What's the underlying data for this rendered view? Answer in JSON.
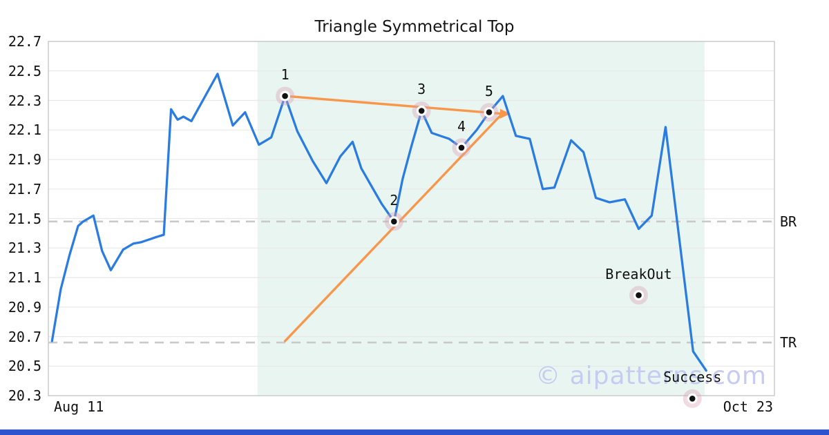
{
  "title": "Triangle Symmetrical Top",
  "watermark": "© aipatterns.com",
  "colors": {
    "price_line": "#2b7ce0",
    "trendline": "#f8964a",
    "pattern_zone": "#e9f5f1",
    "marker_halo": "rgba(219,158,180,0.38)",
    "marker_ring": "#ffffff",
    "marker_dot": "#111111",
    "grid": "#e8e8e8",
    "level_dash": "#c9c9c9",
    "spine": "#cccccc",
    "watermark": "#c6cbf2",
    "bottom_bar": "#2e53cf"
  },
  "chart_data": {
    "type": "line",
    "title": "Triangle Symmetrical Top",
    "legend": "none",
    "grid": "horizontal",
    "x_axis": {
      "start_label": "Aug 11",
      "end_label": "Oct 23"
    },
    "y_axis": {
      "min": 20.3,
      "max": 22.7,
      "tick_step": 0.2,
      "ticks": [
        22.7,
        22.5,
        22.3,
        22.1,
        21.9,
        21.7,
        21.5,
        21.3,
        21.1,
        20.9,
        20.7,
        20.5,
        20.3
      ]
    },
    "levels": [
      {
        "label": "BR",
        "value": 21.48
      },
      {
        "label": "TR",
        "value": 20.66
      }
    ],
    "pattern_zone": {
      "x_start_frac": 0.288,
      "x_end_frac": 0.904
    },
    "series": {
      "name": "price",
      "points": [
        [
          0.005,
          20.67
        ],
        [
          0.017,
          21.02
        ],
        [
          0.029,
          21.25
        ],
        [
          0.041,
          21.45
        ],
        [
          0.048,
          21.48
        ],
        [
          0.062,
          21.52
        ],
        [
          0.074,
          21.28
        ],
        [
          0.086,
          21.15
        ],
        [
          0.103,
          21.29
        ],
        [
          0.117,
          21.33
        ],
        [
          0.128,
          21.34
        ],
        [
          0.14,
          21.36
        ],
        [
          0.149,
          21.375
        ],
        [
          0.159,
          21.39
        ],
        [
          0.169,
          22.24
        ],
        [
          0.178,
          22.17
        ],
        [
          0.186,
          22.19
        ],
        [
          0.197,
          22.16
        ],
        [
          0.233,
          22.48
        ],
        [
          0.254,
          22.13
        ],
        [
          0.271,
          22.22
        ],
        [
          0.29,
          22.0
        ],
        [
          0.307,
          22.05
        ],
        [
          0.326,
          22.33
        ],
        [
          0.343,
          22.09
        ],
        [
          0.364,
          21.89
        ],
        [
          0.383,
          21.74
        ],
        [
          0.402,
          21.92
        ],
        [
          0.419,
          22.02
        ],
        [
          0.431,
          21.84
        ],
        [
          0.445,
          21.72
        ],
        [
          0.459,
          21.6
        ],
        [
          0.476,
          21.48
        ],
        [
          0.488,
          21.77
        ],
        [
          0.5,
          21.99
        ],
        [
          0.514,
          22.23
        ],
        [
          0.528,
          22.08
        ],
        [
          0.552,
          22.04
        ],
        [
          0.569,
          21.98
        ],
        [
          0.59,
          22.1
        ],
        [
          0.607,
          22.22
        ],
        [
          0.626,
          22.33
        ],
        [
          0.644,
          22.06
        ],
        [
          0.663,
          22.04
        ],
        [
          0.681,
          21.7
        ],
        [
          0.697,
          21.71
        ],
        [
          0.72,
          22.03
        ],
        [
          0.737,
          21.95
        ],
        [
          0.754,
          21.64
        ],
        [
          0.773,
          21.61
        ],
        [
          0.794,
          21.63
        ],
        [
          0.813,
          21.43
        ],
        [
          0.831,
          21.52
        ],
        [
          0.85,
          22.12
        ],
        [
          0.872,
          21.24
        ],
        [
          0.888,
          20.6
        ],
        [
          0.906,
          20.47
        ]
      ]
    },
    "trendlines": [
      {
        "name": "upper",
        "from": [
          0.326,
          22.33
        ],
        "to": [
          0.625,
          22.21
        ]
      },
      {
        "name": "lower",
        "from": [
          0.326,
          20.67
        ],
        "to": [
          0.625,
          22.21
        ]
      }
    ],
    "apex": {
      "x": 0.625,
      "value": 22.21
    },
    "annotations": [
      {
        "label": "1",
        "x": 0.326,
        "value": 22.33
      },
      {
        "label": "2",
        "x": 0.476,
        "value": 21.48
      },
      {
        "label": "3",
        "x": 0.514,
        "value": 22.23
      },
      {
        "label": "4",
        "x": 0.569,
        "value": 21.98
      },
      {
        "label": "5",
        "x": 0.607,
        "value": 22.22
      },
      {
        "label": "BreakOut",
        "x": 0.813,
        "value": 20.98
      },
      {
        "label": "Success",
        "x": 0.887,
        "value": 20.28
      }
    ]
  }
}
